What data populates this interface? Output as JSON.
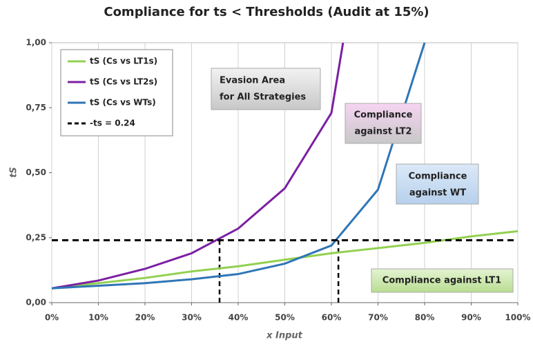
{
  "chart_data": {
    "type": "line",
    "title": "Compliance for ts < Thresholds (Audit at 15%)",
    "x_label": "x Input",
    "y_label": "tS",
    "xlim": [
      0,
      100
    ],
    "ylim": [
      0,
      1
    ],
    "xticks": [
      {
        "value": 0,
        "label": "0%"
      },
      {
        "value": 10,
        "label": "10%"
      },
      {
        "value": 20,
        "label": "20%"
      },
      {
        "value": 30,
        "label": "30%"
      },
      {
        "value": 40,
        "label": "40%"
      },
      {
        "value": 50,
        "label": "50%"
      },
      {
        "value": 60,
        "label": "60%"
      },
      {
        "value": 70,
        "label": "70%"
      },
      {
        "value": 80,
        "label": "80%"
      },
      {
        "value": 90,
        "label": "90%"
      },
      {
        "value": 100,
        "label": "100%"
      }
    ],
    "yticks": [
      {
        "value": 0,
        "label": "0,00"
      },
      {
        "value": 0.25,
        "label": "0,25"
      },
      {
        "value": 0.5,
        "label": "0,50"
      },
      {
        "value": 0.75,
        "label": "0,75"
      },
      {
        "value": 1,
        "label": "1,00"
      }
    ],
    "grid": true,
    "legend": "upper left",
    "series": [
      {
        "name": "tS (Cs vs LT1s)",
        "color": "#92d050",
        "x": [
          0,
          10,
          20,
          30,
          40,
          50,
          60,
          70,
          80,
          90,
          100
        ],
        "values": [
          0.055,
          0.075,
          0.095,
          0.12,
          0.14,
          0.165,
          0.19,
          0.21,
          0.23,
          0.255,
          0.275
        ]
      },
      {
        "name": "tS (Cs vs LT2s)",
        "color": "#7b1fa2",
        "x": [
          0,
          10,
          20,
          30,
          40,
          50,
          60,
          62.5
        ],
        "values": [
          0.055,
          0.085,
          0.13,
          0.19,
          0.285,
          0.44,
          0.73,
          1.0
        ]
      },
      {
        "name": "tS (Cs vs WTs)",
        "color": "#2e75b6",
        "x": [
          0,
          10,
          20,
          30,
          40,
          50,
          60,
          70,
          80
        ],
        "values": [
          0.055,
          0.065,
          0.075,
          0.09,
          0.11,
          0.15,
          0.22,
          0.435,
          1.0
        ]
      },
      {
        "name": "-ts = 0.24",
        "color": "#000000",
        "dashed": true,
        "x": [
          0,
          100
        ],
        "values": [
          0.24,
          0.24
        ]
      }
    ],
    "guides": [
      {
        "x": 36,
        "y": 0.24
      },
      {
        "x": 61.5,
        "y": 0.24
      }
    ],
    "annotations": [
      {
        "lines": [
          "Evasion Area",
          "for All Strategies"
        ]
      },
      {
        "lines": [
          "Compliance",
          "against LT2"
        ]
      },
      {
        "lines": [
          "Compliance",
          "against WT"
        ]
      },
      {
        "lines": [
          "Compliance against LT1"
        ]
      }
    ]
  }
}
